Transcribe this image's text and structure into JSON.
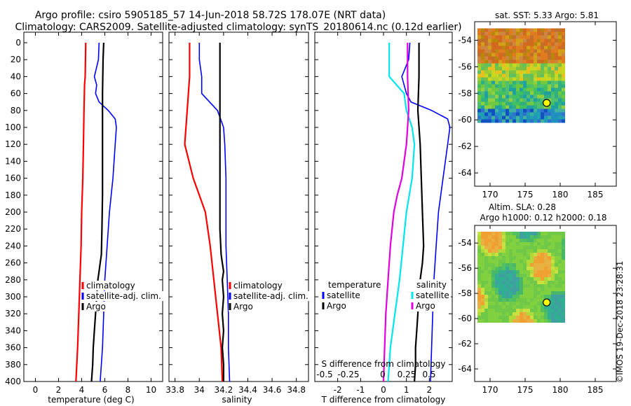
{
  "title": {
    "line1": "Argo profile: csiro 5905185_57 14-Jun-2018 58.72S 178.07E (NRT data)",
    "line2": "Climatology: CARS2009. Satellite-adjusted climatology: synTS_20180614.nc (0.12d earlier)"
  },
  "colors": {
    "climatology": "#ff0000",
    "satellite": "#0000ff",
    "argo": "#000000",
    "sat_salinity": "#00e5ee",
    "magenta": "#e000e0"
  },
  "chart_data": [
    {
      "type": "line",
      "name": "temperature",
      "xlabel": "temperature (deg C)",
      "xlim": [
        -1,
        11
      ],
      "xticks": [
        0,
        2,
        4,
        6,
        8,
        10
      ],
      "ylim": [
        0,
        400
      ],
      "yticks": [
        0,
        20,
        40,
        60,
        80,
        100,
        120,
        140,
        160,
        180,
        200,
        220,
        240,
        260,
        280,
        300,
        320,
        340,
        360,
        380,
        400
      ],
      "legend": [
        "climatology",
        "satellite-adj. clim.",
        "Argo"
      ],
      "series": [
        {
          "name": "climatology",
          "color": "#ff0000",
          "depth": [
            0,
            40,
            50,
            80,
            120,
            160,
            200,
            240,
            280,
            320,
            360,
            400
          ],
          "values": [
            4.35,
            4.3,
            4.25,
            4.2,
            4.15,
            4.1,
            4.0,
            3.95,
            3.85,
            3.75,
            3.65,
            3.5
          ]
        },
        {
          "name": "satellite-adj. clim.",
          "color": "#0000ff",
          "depth": [
            0,
            20,
            40,
            50,
            60,
            70,
            80,
            90,
            100,
            120,
            160,
            200,
            240,
            280,
            320,
            360,
            400
          ],
          "values": [
            5.5,
            5.45,
            5.1,
            5.3,
            5.2,
            5.5,
            6.3,
            6.9,
            7.0,
            6.9,
            6.7,
            6.4,
            6.2,
            6.0,
            5.9,
            5.8,
            5.6
          ]
        },
        {
          "name": "Argo",
          "color": "#000000",
          "depth": [
            0,
            20,
            60,
            100,
            140,
            180,
            220,
            250,
            260,
            270,
            280,
            300,
            320,
            340,
            360,
            380,
            400
          ],
          "values": [
            5.9,
            5.85,
            5.8,
            5.8,
            5.8,
            5.8,
            5.75,
            5.7,
            5.6,
            5.5,
            5.4,
            5.3,
            5.2,
            5.1,
            5.0,
            4.95,
            4.85
          ]
        }
      ]
    },
    {
      "type": "line",
      "name": "salinity",
      "xlabel": "salinity",
      "xlim": [
        33.75,
        34.9
      ],
      "xticks": [
        33.8,
        34,
        34.2,
        34.4,
        34.6,
        34.8
      ],
      "xticklabels": [
        "33.8",
        "34",
        "34.2",
        "34.4",
        "34.6",
        "34.8"
      ],
      "ylim": [
        0,
        400
      ],
      "legend": [
        "climatology",
        "satellite-adj. clim.",
        "Argo"
      ],
      "series": [
        {
          "name": "climatology",
          "color": "#ff0000",
          "depth": [
            0,
            40,
            80,
            120,
            160,
            180,
            200,
            240,
            280,
            320,
            360,
            400
          ],
          "values": [
            33.92,
            33.92,
            33.9,
            33.88,
            33.95,
            34.0,
            34.05,
            34.09,
            34.12,
            34.15,
            34.18,
            34.19
          ]
        },
        {
          "name": "satellite-adj. clim.",
          "color": "#0000ff",
          "depth": [
            0,
            20,
            40,
            60,
            80,
            100,
            120,
            160,
            200,
            240,
            280,
            320,
            360,
            400
          ],
          "values": [
            34.0,
            34.0,
            34.02,
            34.02,
            34.15,
            34.2,
            34.21,
            34.22,
            34.22,
            34.22,
            34.23,
            34.24,
            34.24,
            34.25
          ]
        },
        {
          "name": "Argo",
          "color": "#000000",
          "depth": [
            0,
            20,
            60,
            100,
            120,
            140,
            180,
            220,
            250,
            260,
            270,
            280,
            300,
            320,
            340,
            360,
            380,
            400
          ],
          "values": [
            34.17,
            34.17,
            34.17,
            34.17,
            34.17,
            34.17,
            34.17,
            34.17,
            34.18,
            34.19,
            34.2,
            34.19,
            34.2,
            34.19,
            34.2,
            34.19,
            34.2,
            34.2
          ]
        }
      ]
    },
    {
      "type": "line",
      "name": "difference",
      "xlabel": "T difference from climatology",
      "secondary_xlabel": "S difference from climatology",
      "xlim": [
        -3,
        3
      ],
      "xticks": [
        -2,
        -1,
        0,
        1,
        2
      ],
      "secondary_xticks": [
        -0.5,
        -0.25,
        0,
        0.25,
        0.5
      ],
      "secondary_xticklabels": [
        "-0.5",
        "-0.25",
        "0",
        "0.25",
        "0.5"
      ],
      "ylim": [
        0,
        400
      ],
      "legend_temperature": {
        "title": "temperature",
        "entries": [
          "satellite",
          "Argo"
        ]
      },
      "legend_salinity": {
        "title": "salinity",
        "entries": [
          "satellite",
          "Argo"
        ]
      },
      "series": [
        {
          "name": "T satellite",
          "color": "#0000ff",
          "depth": [
            0,
            20,
            40,
            60,
            70,
            80,
            90,
            100,
            120,
            160,
            200,
            240,
            280,
            320,
            360,
            400
          ],
          "values": [
            1.15,
            1.1,
            0.8,
            1.0,
            1.2,
            2.1,
            2.8,
            2.9,
            2.8,
            2.6,
            2.4,
            2.3,
            2.2,
            2.15,
            2.1,
            2.05
          ]
        },
        {
          "name": "T Argo",
          "color": "#000000",
          "depth": [
            0,
            40,
            80,
            120,
            160,
            200,
            240,
            260,
            280,
            300,
            320,
            340,
            360,
            380,
            400
          ],
          "values": [
            1.55,
            1.55,
            1.5,
            1.6,
            1.65,
            1.7,
            1.75,
            1.7,
            1.6,
            1.55,
            1.5,
            1.45,
            1.4,
            1.4,
            1.35
          ]
        },
        {
          "name": "S satellite",
          "color": "#00e5ee",
          "depth": [
            0,
            40,
            60,
            80,
            100,
            120,
            160,
            200,
            240,
            280,
            320,
            360,
            400
          ],
          "values": [
            0.25,
            0.25,
            0.9,
            1.0,
            1.25,
            1.35,
            1.25,
            1.0,
            0.85,
            0.7,
            0.5,
            0.3,
            0.2
          ]
        },
        {
          "name": "S Argo",
          "color": "#e000e0",
          "depth": [
            0,
            40,
            80,
            120,
            160,
            180,
            200,
            240,
            280,
            320,
            360,
            400
          ],
          "values": [
            1.05,
            1.05,
            1.1,
            1.0,
            0.8,
            0.6,
            0.45,
            0.3,
            0.2,
            0.1,
            0.05,
            0.0
          ]
        }
      ]
    }
  ],
  "maps": {
    "sst": {
      "title": "sat. SST: 5.33 Argo: 5.81",
      "lon_ticks": [
        170,
        175,
        180,
        185
      ],
      "lat_ticks": [
        -54,
        -56,
        -58,
        -60,
        -62,
        -64
      ],
      "float_lon": 178.07,
      "float_lat": -58.72
    },
    "sla": {
      "title_line1": "Altim. SLA: 0.28",
      "title_line2": "Argo h1000: 0.12 h2000: 0.18",
      "lon_ticks": [
        170,
        175,
        180,
        185
      ],
      "lat_ticks": [
        -54,
        -56,
        -58,
        -60,
        -62,
        -64
      ],
      "float_lon": 178.07,
      "float_lat": -58.72
    }
  },
  "footer": {
    "stamp": "©IMOS 19-Dec-2018 23:28:31"
  }
}
